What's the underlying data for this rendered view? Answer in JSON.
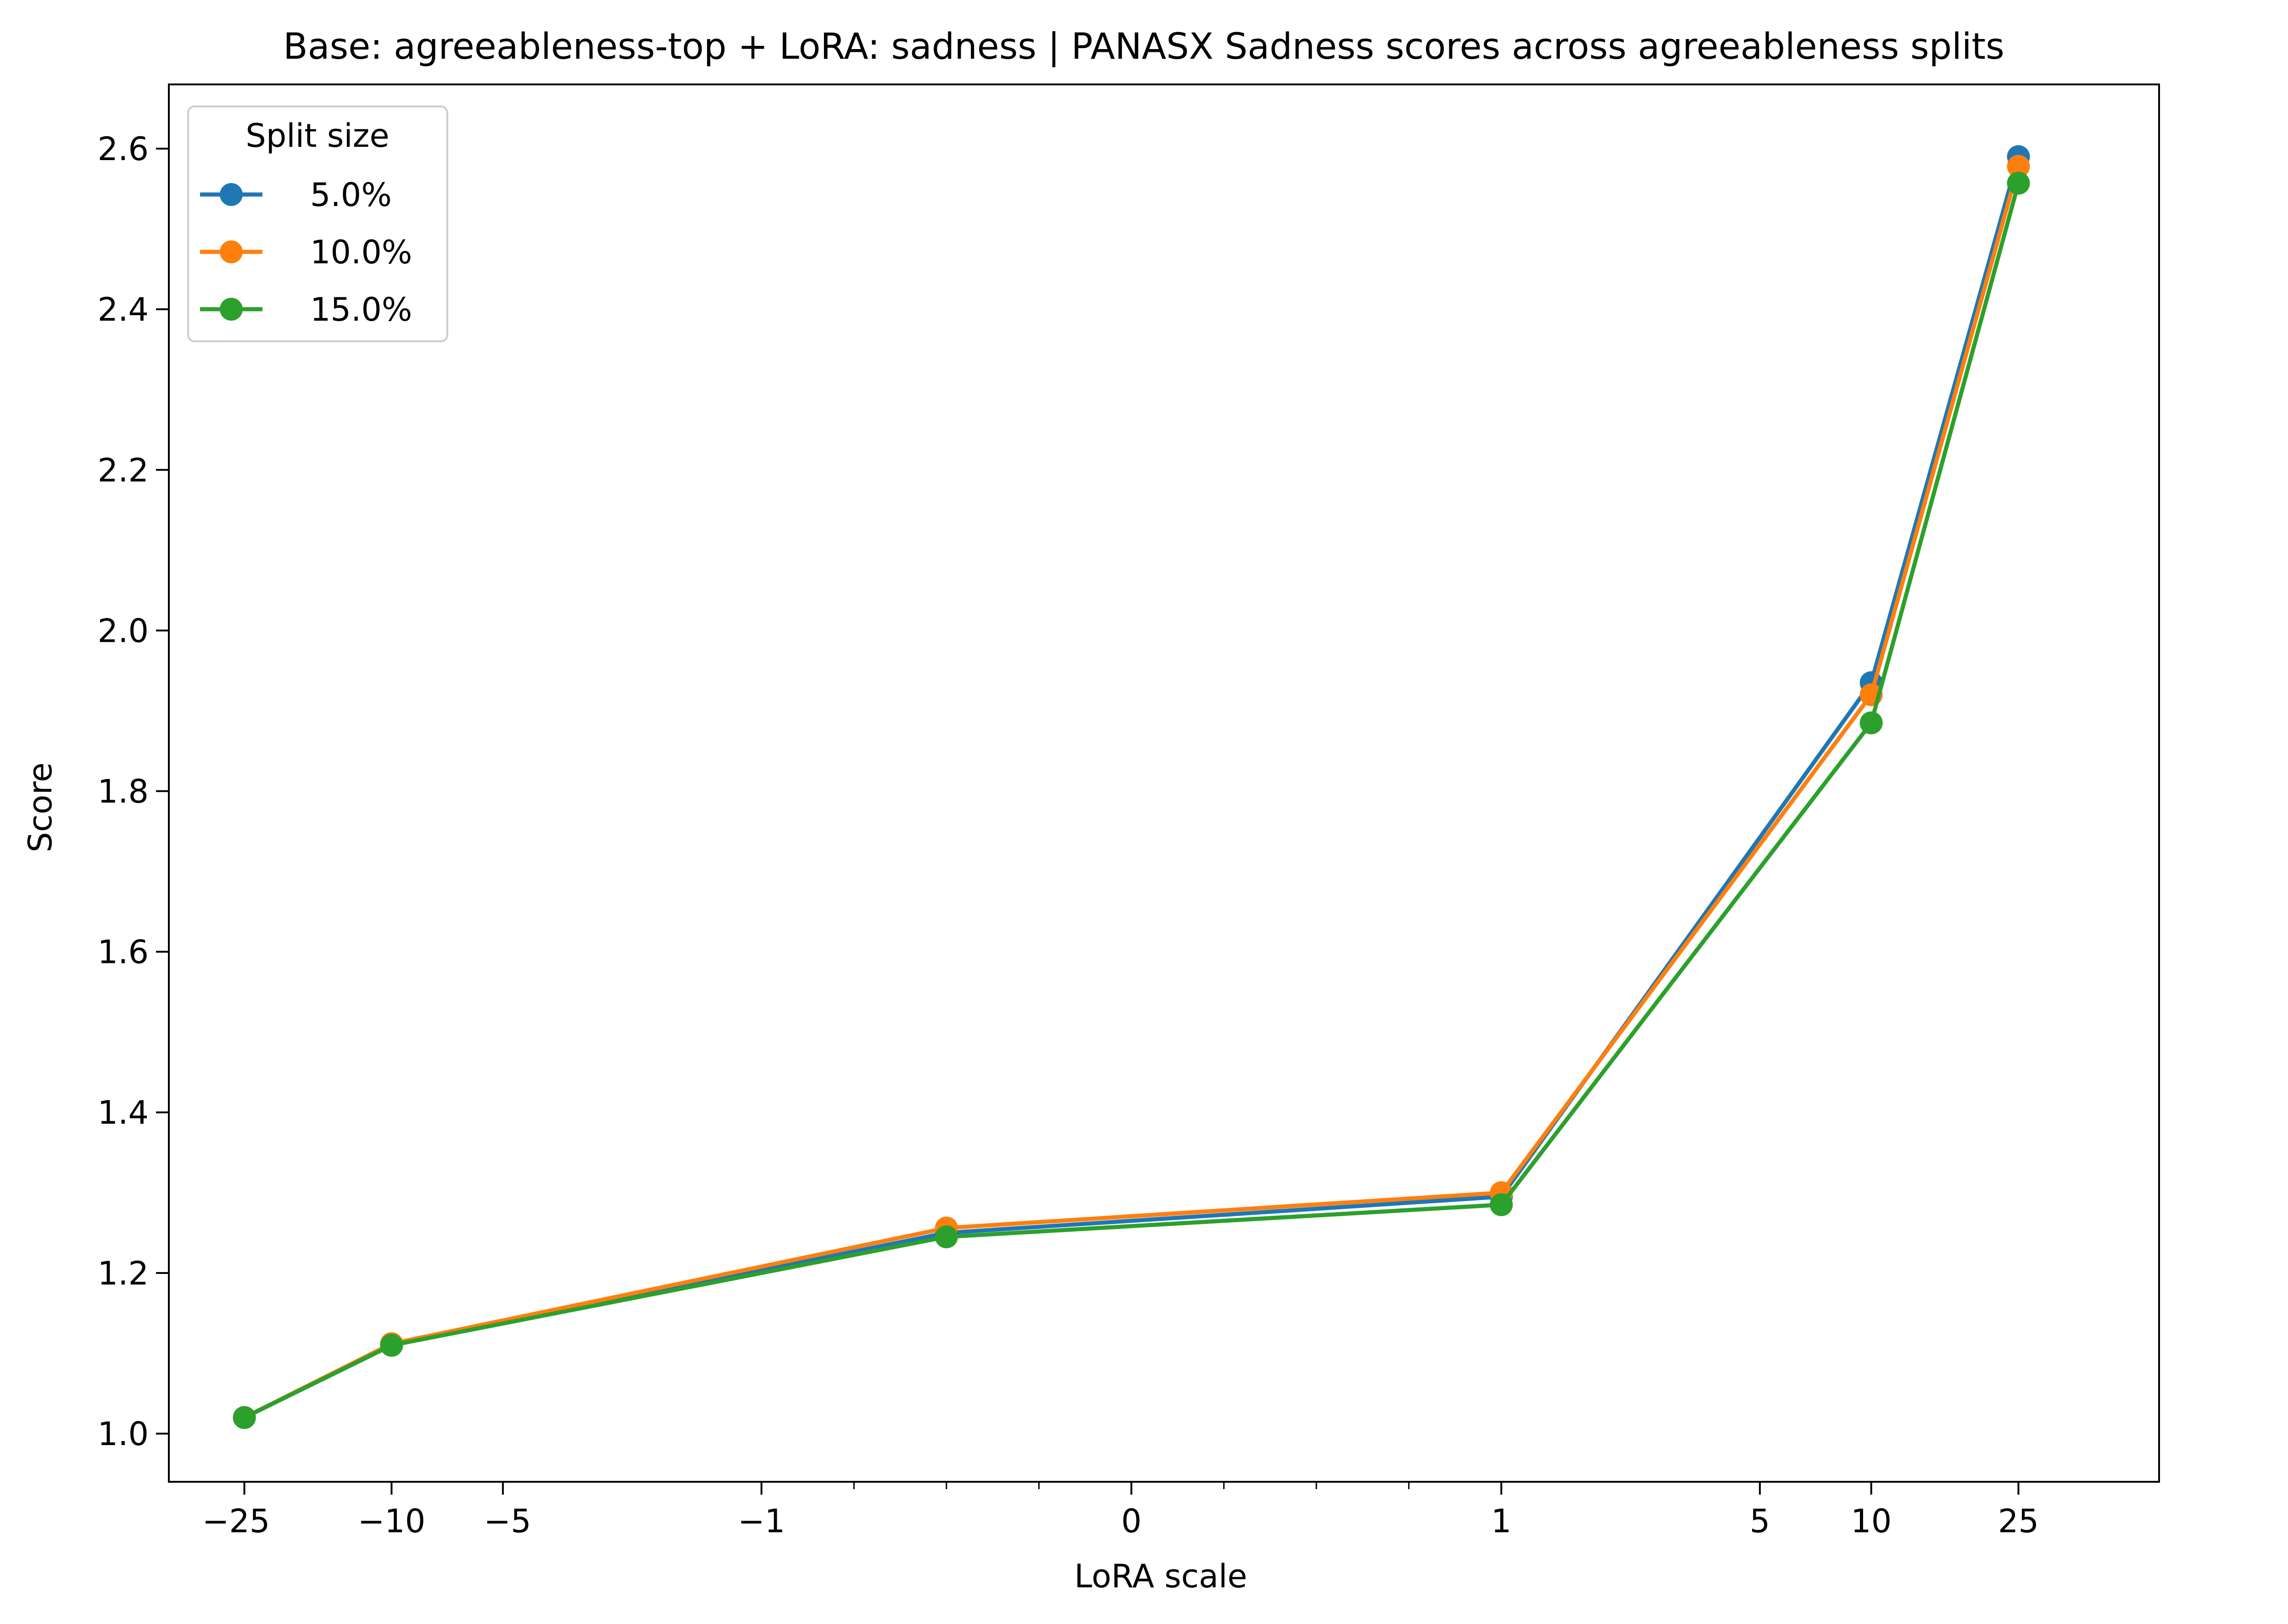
{
  "chart_data": {
    "type": "line",
    "title": "Base: agreeableness-top + LoRA: sadness | PANASX Sadness scores across agreeableness splits",
    "xlabel": "LoRA scale",
    "ylabel": "Score",
    "x_scale": "symlog",
    "x_linthresh": 1,
    "xlim": [
      -40,
      60
    ],
    "ylim": [
      0.94,
      2.68
    ],
    "x_ticks": [
      -25,
      -10,
      -5,
      -1,
      0,
      1,
      5,
      10,
      25
    ],
    "x_tick_labels": [
      "−25",
      "−10",
      "−5",
      "−1",
      "0",
      "1",
      "5",
      "10",
      "25"
    ],
    "y_ticks": [
      1.0,
      1.2,
      1.4,
      1.6,
      1.8,
      2.0,
      2.2,
      2.4,
      2.6
    ],
    "y_tick_labels": [
      "1.0",
      "1.2",
      "1.4",
      "1.6",
      "1.8",
      "2.0",
      "2.2",
      "2.4",
      "2.6"
    ],
    "legend": {
      "title": "Split size",
      "position": "top-left"
    },
    "grid": false,
    "x": [
      -25,
      -10,
      -0.5,
      1,
      10,
      25
    ],
    "series": [
      {
        "name": "5.0%",
        "color": "#1f77b4",
        "values": [
          1.02,
          1.11,
          1.25,
          1.295,
          1.935,
          2.59
        ]
      },
      {
        "name": "10.0%",
        "color": "#ff7f0e",
        "values": [
          1.02,
          1.112,
          1.256,
          1.3,
          1.92,
          2.578
        ]
      },
      {
        "name": "15.0%",
        "color": "#2ca02c",
        "values": [
          1.02,
          1.11,
          1.245,
          1.285,
          1.885,
          2.557
        ]
      }
    ]
  }
}
